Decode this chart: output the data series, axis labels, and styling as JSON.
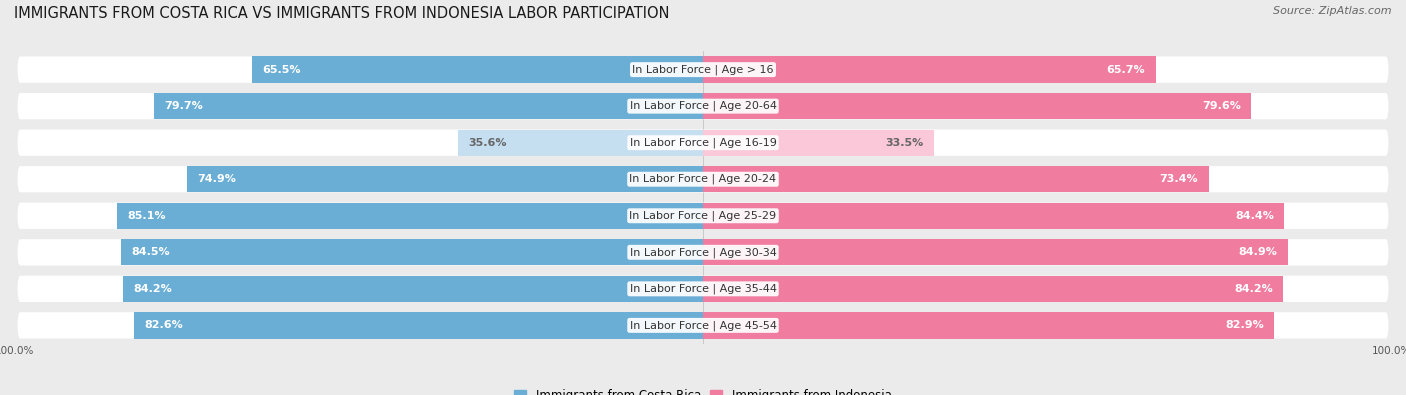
{
  "title": "IMMIGRANTS FROM COSTA RICA VS IMMIGRANTS FROM INDONESIA LABOR PARTICIPATION",
  "source": "Source: ZipAtlas.com",
  "categories": [
    "In Labor Force | Age > 16",
    "In Labor Force | Age 20-64",
    "In Labor Force | Age 16-19",
    "In Labor Force | Age 20-24",
    "In Labor Force | Age 25-29",
    "In Labor Force | Age 30-34",
    "In Labor Force | Age 35-44",
    "In Labor Force | Age 45-54"
  ],
  "costa_rica": [
    65.5,
    79.7,
    35.6,
    74.9,
    85.1,
    84.5,
    84.2,
    82.6
  ],
  "indonesia": [
    65.7,
    79.6,
    33.5,
    73.4,
    84.4,
    84.9,
    84.2,
    82.9
  ],
  "costa_rica_color": "#6AAED6",
  "costa_rica_light_color": "#C5DFF0",
  "indonesia_color": "#F07CA0",
  "indonesia_light_color": "#FAC8D8",
  "background_color": "#ebebeb",
  "row_bg_color": "#ffffff",
  "title_fontsize": 10.5,
  "bar_fontsize": 8,
  "label_fontsize": 8,
  "legend_fontsize": 8.5,
  "source_fontsize": 8,
  "axis_label_fontsize": 7.5,
  "xlim": 100,
  "threshold_color": 60
}
